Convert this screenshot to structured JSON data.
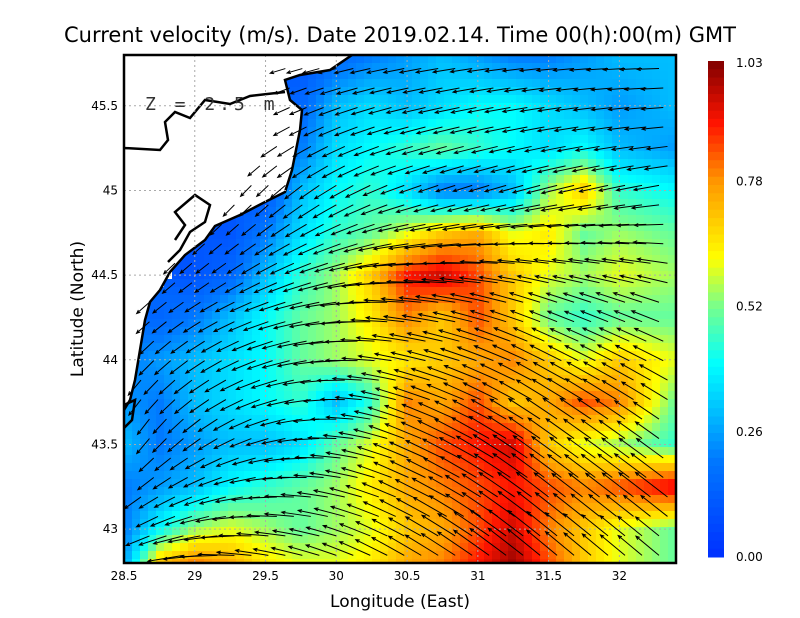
{
  "chart_data": {
    "type": "heatmap",
    "title": "Current velocity (m/s). Date 2019.02.14. Time 00(h):00(m) GMT",
    "xlabel": "Longitude (East)",
    "ylabel": "Latitude (North)",
    "annotation": "Z = 2.5 m",
    "xlim": [
      28.5,
      32.4
    ],
    "ylim": [
      42.8,
      45.8
    ],
    "xticks": [
      "28.5",
      "29",
      "29.5",
      "30",
      "30.5",
      "31",
      "31.5",
      "32"
    ],
    "xtick_values": [
      28.5,
      29,
      29.5,
      30,
      30.5,
      31,
      31.5,
      32
    ],
    "yticks": [
      "43",
      "43.5",
      "44",
      "44.5",
      "45",
      "45.5"
    ],
    "ytick_values": [
      43,
      43.5,
      44,
      44.5,
      45,
      45.5
    ],
    "grid": true,
    "colorbar": {
      "label_values": [
        "0.00",
        "0.26",
        "0.52",
        "0.78",
        "1.03"
      ],
      "min": 0,
      "max": 1.03
    },
    "lon": [
      28.5,
      28.75,
      29.0,
      29.25,
      29.5,
      29.75,
      30.0,
      30.25,
      30.5,
      30.75,
      31.0,
      31.25,
      31.5,
      31.75,
      32.0,
      32.4
    ],
    "lat": [
      45.8,
      45.5,
      45.25,
      45.0,
      44.75,
      44.5,
      44.25,
      44.0,
      43.75,
      43.5,
      43.25,
      43.0,
      42.8
    ],
    "speed": [
      [
        null,
        null,
        null,
        null,
        null,
        0.1,
        0.15,
        0.2,
        0.25,
        0.3,
        0.25,
        0.2,
        0.2,
        0.25,
        0.3,
        0.3
      ],
      [
        null,
        null,
        null,
        null,
        null,
        0.15,
        0.3,
        0.35,
        0.3,
        0.35,
        0.4,
        0.4,
        0.35,
        0.3,
        0.25,
        0.3
      ],
      [
        null,
        null,
        null,
        null,
        null,
        0.2,
        0.35,
        0.4,
        0.45,
        0.5,
        0.45,
        0.4,
        0.35,
        0.4,
        0.3,
        0.25
      ],
      [
        null,
        null,
        null,
        null,
        0.1,
        0.3,
        0.4,
        0.45,
        0.35,
        0.2,
        0.2,
        0.3,
        0.55,
        0.7,
        0.45,
        0.4
      ],
      [
        null,
        null,
        null,
        0.1,
        0.2,
        0.35,
        0.45,
        0.5,
        0.6,
        0.7,
        0.75,
        0.6,
        0.65,
        0.5,
        0.55,
        0.5
      ],
      [
        null,
        null,
        0.1,
        0.15,
        0.3,
        0.45,
        0.55,
        0.7,
        0.9,
        0.95,
        0.85,
        0.7,
        0.6,
        0.55,
        0.6,
        0.55
      ],
      [
        null,
        0.15,
        0.2,
        0.3,
        0.4,
        0.5,
        0.55,
        0.65,
        0.8,
        0.7,
        0.85,
        0.7,
        0.5,
        0.45,
        0.5,
        0.5
      ],
      [
        0.2,
        0.25,
        0.3,
        0.35,
        0.4,
        0.5,
        0.55,
        0.6,
        0.65,
        0.7,
        0.75,
        0.8,
        0.7,
        0.6,
        0.7,
        0.6
      ],
      [
        0.25,
        0.2,
        0.3,
        0.35,
        0.4,
        0.45,
        0.3,
        0.45,
        0.8,
        0.75,
        0.85,
        0.7,
        0.75,
        0.85,
        0.8,
        0.5
      ],
      [
        0.3,
        0.2,
        0.25,
        0.3,
        0.3,
        0.35,
        0.5,
        0.6,
        0.75,
        0.85,
        0.9,
        0.95,
        0.7,
        0.6,
        0.55,
        0.45
      ],
      [
        0.2,
        0.25,
        0.3,
        0.4,
        0.45,
        0.5,
        0.55,
        0.65,
        0.75,
        0.8,
        0.85,
        0.9,
        0.85,
        0.8,
        0.85,
        0.95
      ],
      [
        0.2,
        0.4,
        0.55,
        0.6,
        0.55,
        0.5,
        0.55,
        0.6,
        0.7,
        0.75,
        0.85,
        0.95,
        0.8,
        0.7,
        0.6,
        0.5
      ],
      [
        0.25,
        0.7,
        0.8,
        0.75,
        0.65,
        0.6,
        0.6,
        0.65,
        0.75,
        0.8,
        0.9,
        1.0,
        0.85,
        0.7,
        0.6,
        0.5
      ]
    ],
    "direction_lon": [
      28.5,
      29.5,
      30.5,
      31.5,
      32.4
    ],
    "direction_lat": [
      45.8,
      45.0,
      44.3,
      43.6,
      42.8
    ],
    "direction_deg": [
      [
        200,
        195,
        190,
        185,
        180
      ],
      [
        240,
        225,
        200,
        195,
        190
      ],
      [
        225,
        200,
        175,
        160,
        160
      ],
      [
        240,
        200,
        160,
        145,
        145
      ],
      [
        200,
        170,
        150,
        140,
        140
      ]
    ]
  }
}
